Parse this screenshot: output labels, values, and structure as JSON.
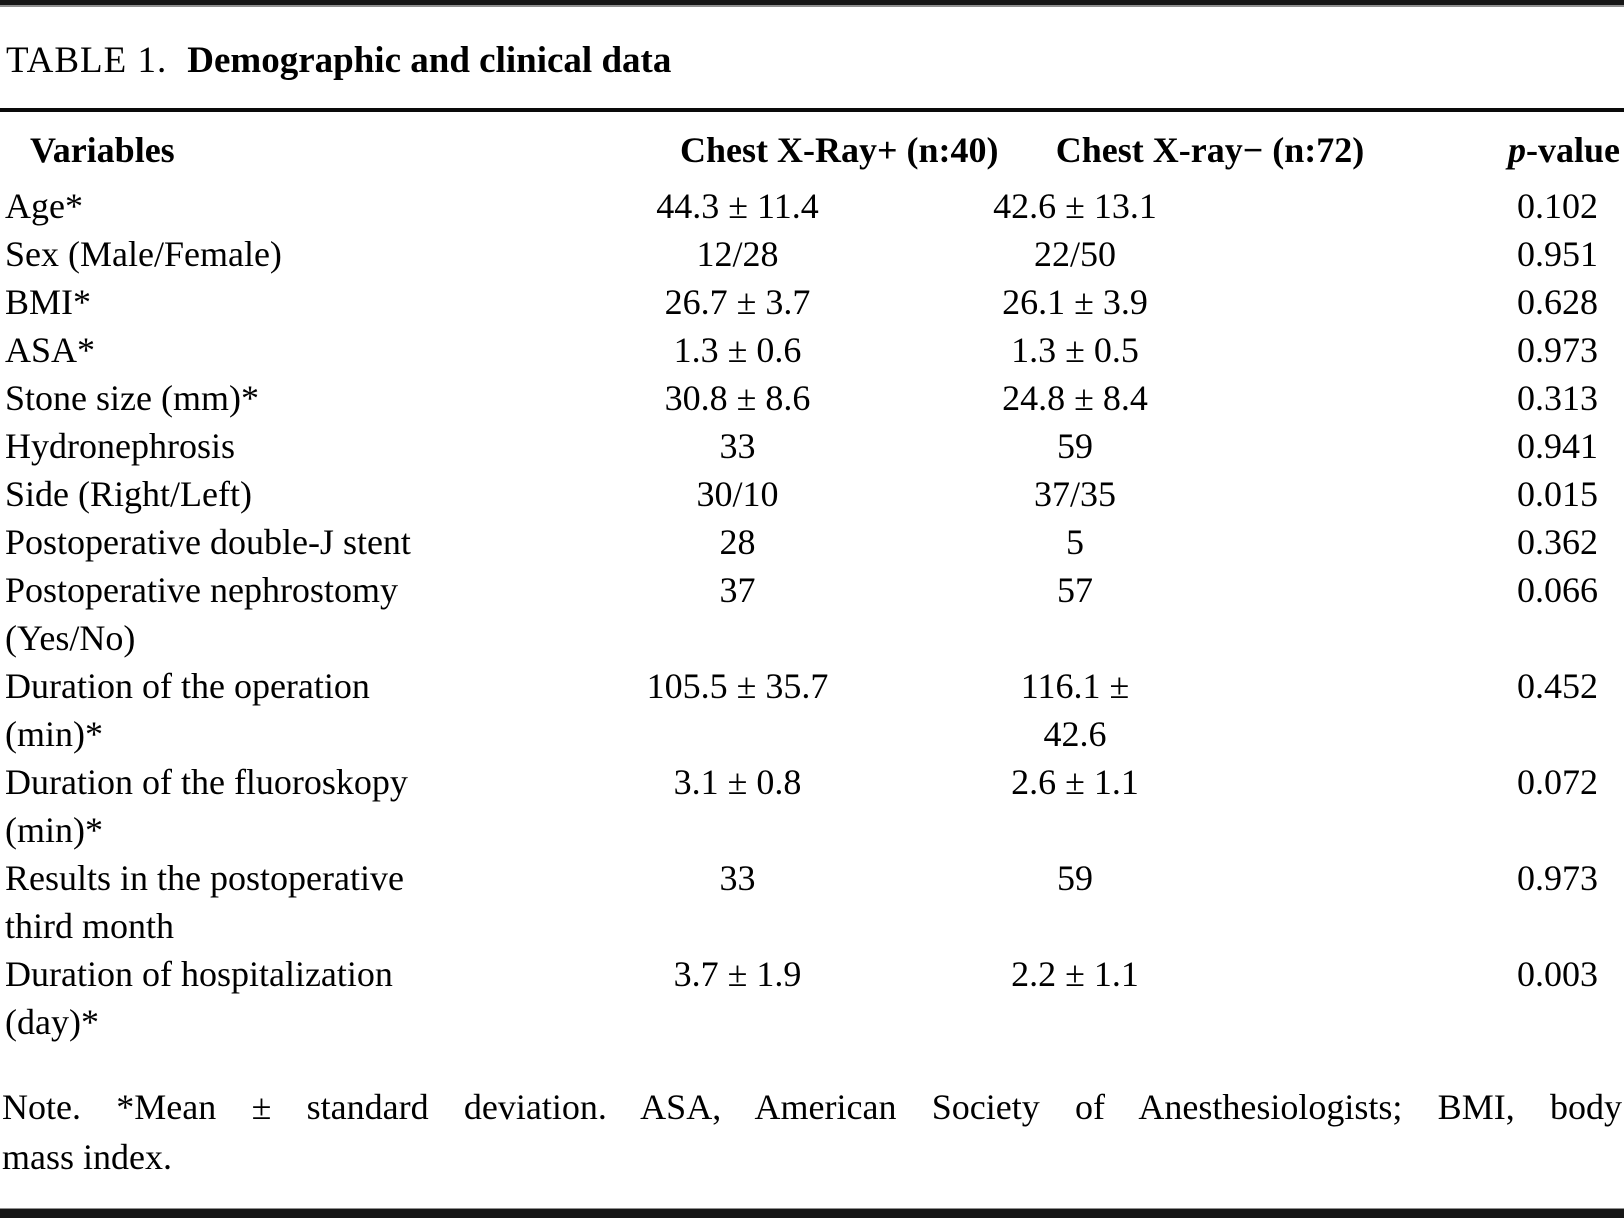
{
  "table": {
    "label": "TABLE 1.",
    "title": "Demographic and clinical data",
    "headers": {
      "variables": "Variables",
      "group1": "Chest X-Ray+ (n:40)",
      "group2": "Chest X-ray− (n:72)",
      "p_italic": "p",
      "p_rest": "-value"
    },
    "rows": [
      {
        "label": "Age*",
        "c2": "44.3 ± 11.4",
        "c3": "42.6 ± 13.1",
        "p": "0.102"
      },
      {
        "label": "Sex (Male/Female)",
        "c2": "12/28",
        "c3": "22/50",
        "p": "0.951"
      },
      {
        "label": "BMI*",
        "c2": "26.7 ± 3.7",
        "c3": "26.1 ± 3.9",
        "p": "0.628"
      },
      {
        "label": "ASA*",
        "c2": "1.3 ± 0.6",
        "c3": "1.3 ± 0.5",
        "p": "0.973"
      },
      {
        "label": "Stone size (mm)*",
        "c2": "30.8 ± 8.6",
        "c3": "24.8 ± 8.4",
        "p": "0.313"
      },
      {
        "label": "Hydronephrosis",
        "c2": "33",
        "c3": "59",
        "p": "0.941"
      },
      {
        "label": "Side (Right/Left)",
        "c2": "30/10",
        "c3": "37/35",
        "p": "0.015"
      },
      {
        "label": "Postoperative double-J stent",
        "c2": "28",
        "c3": "5",
        "p": "0.362"
      },
      {
        "label": "Postoperative nephrostomy",
        "label2": "(Yes/No)",
        "c2": "37",
        "c3": "57",
        "p": "0.066"
      },
      {
        "label": "Duration of the operation",
        "label2": "(min)*",
        "c2": "105.5 ± 35.7",
        "c3": "116.1 ±",
        "c3b": "42.6",
        "p": "0.452"
      },
      {
        "label": "Duration of the fluoroskopy",
        "label2": "(min)*",
        "c2": "3.1 ± 0.8",
        "c3": "2.6 ± 1.1",
        "p": "0.072"
      },
      {
        "label": "Results in the postoperative",
        "label2": "third month",
        "c2": "33",
        "c3": "59",
        "p": "0.973"
      },
      {
        "label": "Duration of hospitalization",
        "label2": "(day)*",
        "c2": "3.7 ± 1.9",
        "c3": "2.2 ± 1.1",
        "p": "0.003"
      }
    ],
    "note_line1": "Note. *Mean ± standard deviation. ASA, American Society of Anesthesiologists; BMI, body",
    "note_line2": "mass index."
  }
}
